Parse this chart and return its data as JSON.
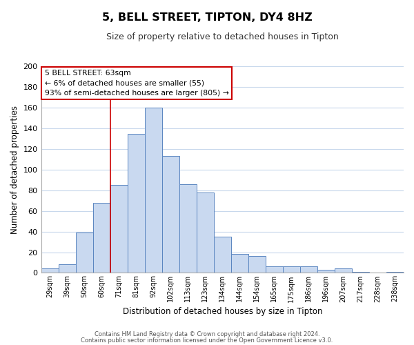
{
  "title": "5, BELL STREET, TIPTON, DY4 8HZ",
  "subtitle": "Size of property relative to detached houses in Tipton",
  "xlabel": "Distribution of detached houses by size in Tipton",
  "ylabel": "Number of detached properties",
  "bar_labels": [
    "29sqm",
    "39sqm",
    "50sqm",
    "60sqm",
    "71sqm",
    "81sqm",
    "92sqm",
    "102sqm",
    "113sqm",
    "123sqm",
    "134sqm",
    "144sqm",
    "154sqm",
    "165sqm",
    "175sqm",
    "186sqm",
    "196sqm",
    "207sqm",
    "217sqm",
    "228sqm",
    "238sqm"
  ],
  "bar_values": [
    4,
    8,
    39,
    68,
    85,
    135,
    160,
    113,
    86,
    78,
    35,
    18,
    16,
    6,
    6,
    6,
    3,
    4,
    1,
    0,
    1
  ],
  "bar_color": "#c9d9f0",
  "bar_edge_color": "#5a85c0",
  "ylim": [
    0,
    200
  ],
  "yticks": [
    0,
    20,
    40,
    60,
    80,
    100,
    120,
    140,
    160,
    180,
    200
  ],
  "vline_x": 3.5,
  "vline_color": "#cc0000",
  "annotation_title": "5 BELL STREET: 63sqm",
  "annotation_line1": "← 6% of detached houses are smaller (55)",
  "annotation_line2": "93% of semi-detached houses are larger (805) →",
  "annotation_box_color": "#ffffff",
  "annotation_box_edge_color": "#cc0000",
  "footer1": "Contains HM Land Registry data © Crown copyright and database right 2024.",
  "footer2": "Contains public sector information licensed under the Open Government Licence v3.0.",
  "background_color": "#ffffff",
  "grid_color": "#c8d8ec"
}
